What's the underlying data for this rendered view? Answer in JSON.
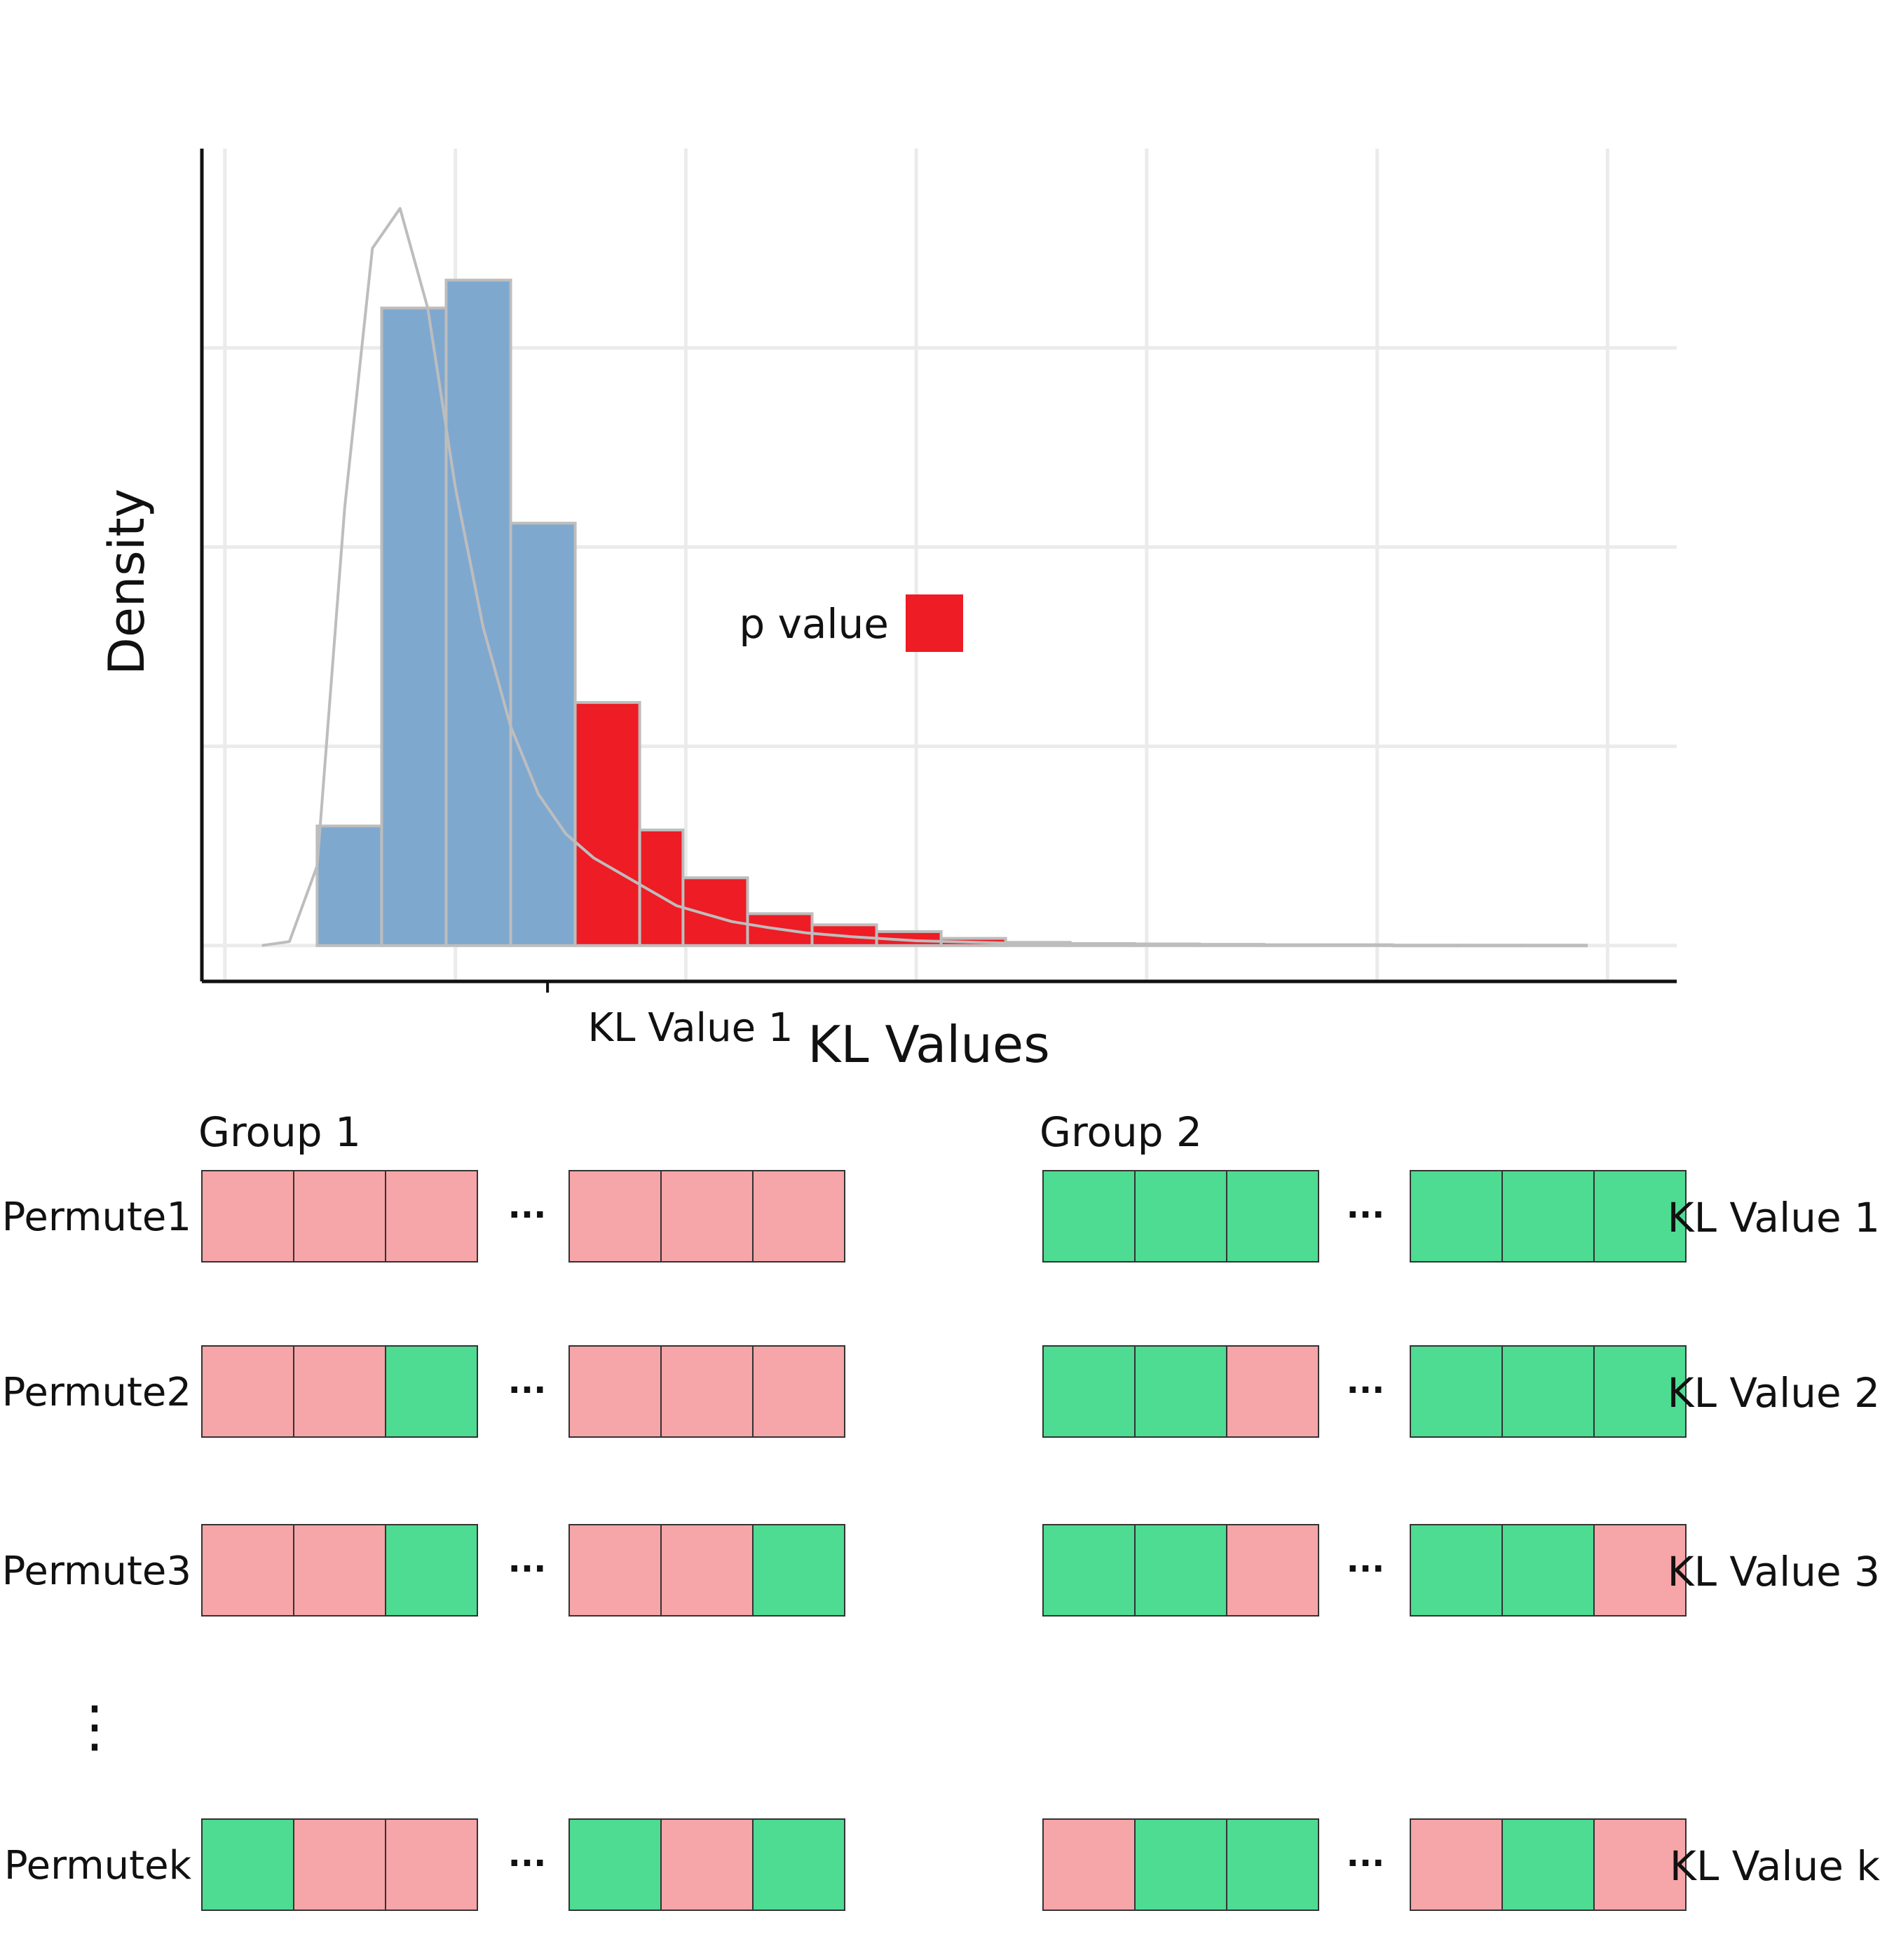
{
  "figure": {
    "histogram": {
      "y_axis_label": "Density",
      "x_axis_label": "KL Values",
      "x_tick_label": "KL Value 1",
      "legend_label": "p value",
      "colors": {
        "bar": "#7fa8cf",
        "bar_edge": "#bdbdbd",
        "tail": "#ee1c25",
        "density_curve": "#bdbdbd",
        "grid": "#ebebeb",
        "axis": "#111111"
      }
    },
    "chart_data": {
      "type": "bar",
      "title": "",
      "xlabel": "KL Values",
      "ylabel": "Density",
      "x_tick_labels": [
        "KL Value 1"
      ],
      "observed_value": 0.7,
      "xlim": [
        -0.05,
        3.15
      ],
      "ylim": [
        -0.09,
        2.0
      ],
      "bin_edges": [
        0.2,
        0.34,
        0.48,
        0.62,
        0.76,
        0.9,
        0.994,
        1.134,
        1.274,
        1.414,
        1.554,
        1.694,
        1.834,
        1.974,
        2.114,
        2.254,
        2.394,
        2.534,
        2.674,
        2.814,
        2.954
      ],
      "density": [
        0.3,
        1.6,
        1.67,
        1.06,
        0.61,
        0.29,
        0.17,
        0.08,
        0.052,
        0.035,
        0.018,
        0.008,
        0.005,
        0.004,
        0.003,
        0.002,
        0.002,
        0.001,
        0.001,
        0.001
      ],
      "tail_color": "#ee1c25",
      "body_color": "#7fa8cf",
      "legend": [
        {
          "label": "p value",
          "color": "#ee1c25"
        }
      ],
      "density_curve": {
        "x": [
          0.08,
          0.14,
          0.2,
          0.26,
          0.32,
          0.38,
          0.44,
          0.5,
          0.56,
          0.62,
          0.68,
          0.74,
          0.8,
          0.86,
          0.92,
          0.98,
          1.04,
          1.1,
          1.18,
          1.26,
          1.36,
          1.5,
          1.7,
          1.95,
          2.3,
          2.7,
          2.95
        ],
        "y": [
          0.0,
          0.01,
          0.2,
          1.1,
          1.75,
          1.85,
          1.6,
          1.15,
          0.8,
          0.55,
          0.38,
          0.28,
          0.22,
          0.18,
          0.14,
          0.1,
          0.08,
          0.06,
          0.045,
          0.032,
          0.022,
          0.012,
          0.006,
          0.003,
          0.001,
          0.0,
          0.0
        ]
      }
    },
    "permutations": {
      "group_labels": [
        "Group 1",
        "Group 2"
      ],
      "ellipsis": "···",
      "vertical_ellipsis": "⋮",
      "colors": {
        "pink": "#f6a5a8",
        "green": "#4edb92",
        "edge": "#333333"
      },
      "rows": [
        {
          "label": "Permute1",
          "kl": "KL Value 1",
          "g1": [
            "pink",
            "pink",
            "pink",
            "pink",
            "pink",
            "pink"
          ],
          "g2": [
            "green",
            "green",
            "green",
            "green",
            "green",
            "green"
          ]
        },
        {
          "label": "Permute2",
          "kl": "KL Value 2",
          "g1": [
            "pink",
            "pink",
            "green",
            "pink",
            "pink",
            "pink"
          ],
          "g2": [
            "green",
            "green",
            "pink",
            "green",
            "green",
            "green"
          ]
        },
        {
          "label": "Permute3",
          "kl": "KL Value 3",
          "g1": [
            "pink",
            "pink",
            "green",
            "pink",
            "pink",
            "green"
          ],
          "g2": [
            "green",
            "green",
            "pink",
            "green",
            "green",
            "pink"
          ]
        },
        {
          "label": "Permutek",
          "kl": "KL Value k",
          "g1": [
            "green",
            "pink",
            "pink",
            "green",
            "pink",
            "green"
          ],
          "g2": [
            "pink",
            "green",
            "green",
            "pink",
            "green",
            "pink"
          ]
        }
      ]
    }
  }
}
